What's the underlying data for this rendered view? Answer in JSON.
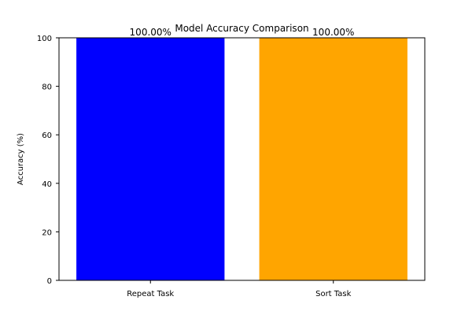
{
  "chart_data": {
    "type": "bar",
    "title": "Model Accuracy Comparison",
    "xlabel": "",
    "ylabel": "Accuracy (%)",
    "categories": [
      "Repeat Task",
      "Sort Task"
    ],
    "values": [
      100.0,
      100.0
    ],
    "data_labels": [
      "100.00%",
      "100.00%"
    ],
    "colors": [
      "#0000ff",
      "#ffa500"
    ],
    "ylim": [
      0,
      100
    ],
    "yticks": [
      0,
      20,
      40,
      60,
      80,
      100
    ],
    "grid": false,
    "legend": "none"
  }
}
